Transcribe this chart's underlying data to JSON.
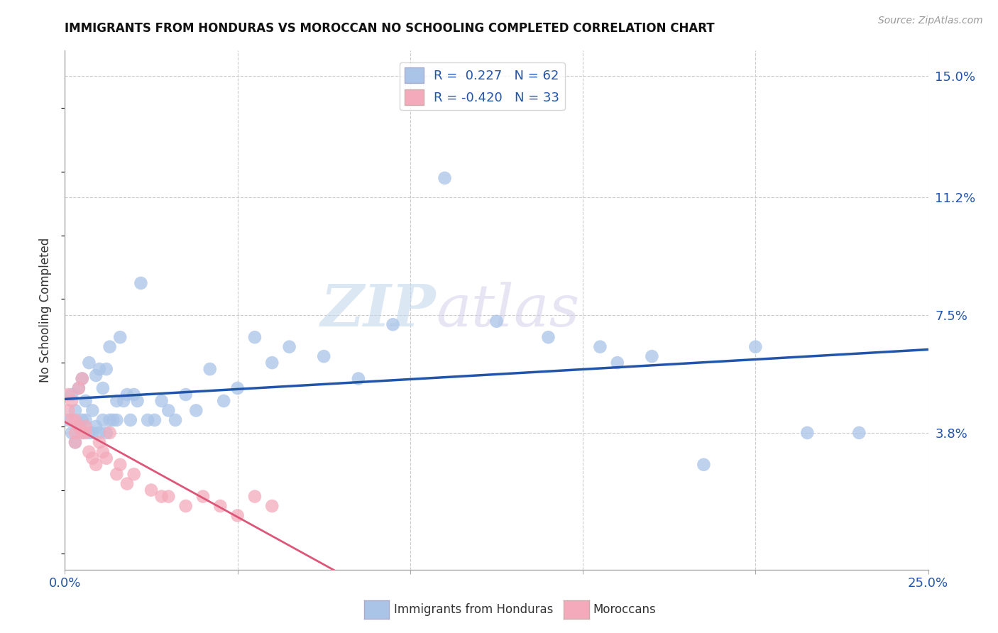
{
  "title": "IMMIGRANTS FROM HONDURAS VS MOROCCAN NO SCHOOLING COMPLETED CORRELATION CHART",
  "source_text": "Source: ZipAtlas.com",
  "ylabel": "No Schooling Completed",
  "xlim": [
    0.0,
    0.25
  ],
  "ylim": [
    -0.005,
    0.158
  ],
  "right_yticks": [
    0.15,
    0.112,
    0.075,
    0.038
  ],
  "right_yticklabels": [
    "15.0%",
    "11.2%",
    "7.5%",
    "3.8%"
  ],
  "watermark": "ZIPatlas",
  "blue_R": 0.227,
  "blue_N": 62,
  "pink_R": -0.42,
  "pink_N": 33,
  "blue_color": "#aac4e8",
  "pink_color": "#f4aabb",
  "blue_line_color": "#2255aa",
  "pink_line_color": "#dd5577",
  "legend_blue_label": "Immigrants from Honduras",
  "legend_pink_label": "Moroccans",
  "blue_scatter_x": [
    0.001,
    0.002,
    0.002,
    0.003,
    0.003,
    0.004,
    0.004,
    0.005,
    0.005,
    0.005,
    0.006,
    0.006,
    0.007,
    0.007,
    0.008,
    0.008,
    0.009,
    0.009,
    0.01,
    0.01,
    0.011,
    0.011,
    0.012,
    0.012,
    0.013,
    0.013,
    0.014,
    0.015,
    0.015,
    0.016,
    0.017,
    0.018,
    0.019,
    0.02,
    0.021,
    0.022,
    0.024,
    0.026,
    0.028,
    0.03,
    0.032,
    0.035,
    0.038,
    0.042,
    0.046,
    0.05,
    0.055,
    0.06,
    0.065,
    0.075,
    0.085,
    0.095,
    0.11,
    0.125,
    0.14,
    0.155,
    0.16,
    0.17,
    0.185,
    0.2,
    0.215,
    0.23
  ],
  "blue_scatter_y": [
    0.042,
    0.038,
    0.05,
    0.045,
    0.035,
    0.04,
    0.052,
    0.038,
    0.055,
    0.042,
    0.042,
    0.048,
    0.038,
    0.06,
    0.038,
    0.045,
    0.04,
    0.056,
    0.038,
    0.058,
    0.042,
    0.052,
    0.058,
    0.038,
    0.042,
    0.065,
    0.042,
    0.048,
    0.042,
    0.068,
    0.048,
    0.05,
    0.042,
    0.05,
    0.048,
    0.085,
    0.042,
    0.042,
    0.048,
    0.045,
    0.042,
    0.05,
    0.045,
    0.058,
    0.048,
    0.052,
    0.068,
    0.06,
    0.065,
    0.062,
    0.055,
    0.072,
    0.118,
    0.073,
    0.068,
    0.065,
    0.06,
    0.062,
    0.028,
    0.065,
    0.038,
    0.038
  ],
  "pink_scatter_x": [
    0.001,
    0.001,
    0.002,
    0.002,
    0.003,
    0.003,
    0.003,
    0.004,
    0.004,
    0.005,
    0.005,
    0.006,
    0.006,
    0.007,
    0.008,
    0.009,
    0.01,
    0.011,
    0.012,
    0.013,
    0.015,
    0.016,
    0.018,
    0.02,
    0.025,
    0.028,
    0.03,
    0.035,
    0.04,
    0.045,
    0.05,
    0.055,
    0.06
  ],
  "pink_scatter_y": [
    0.05,
    0.045,
    0.042,
    0.048,
    0.038,
    0.042,
    0.035,
    0.04,
    0.052,
    0.038,
    0.055,
    0.04,
    0.038,
    0.032,
    0.03,
    0.028,
    0.035,
    0.032,
    0.03,
    0.038,
    0.025,
    0.028,
    0.022,
    0.025,
    0.02,
    0.018,
    0.018,
    0.015,
    0.018,
    0.015,
    0.012,
    0.018,
    0.015
  ],
  "background_color": "#ffffff",
  "grid_color": "#cccccc"
}
